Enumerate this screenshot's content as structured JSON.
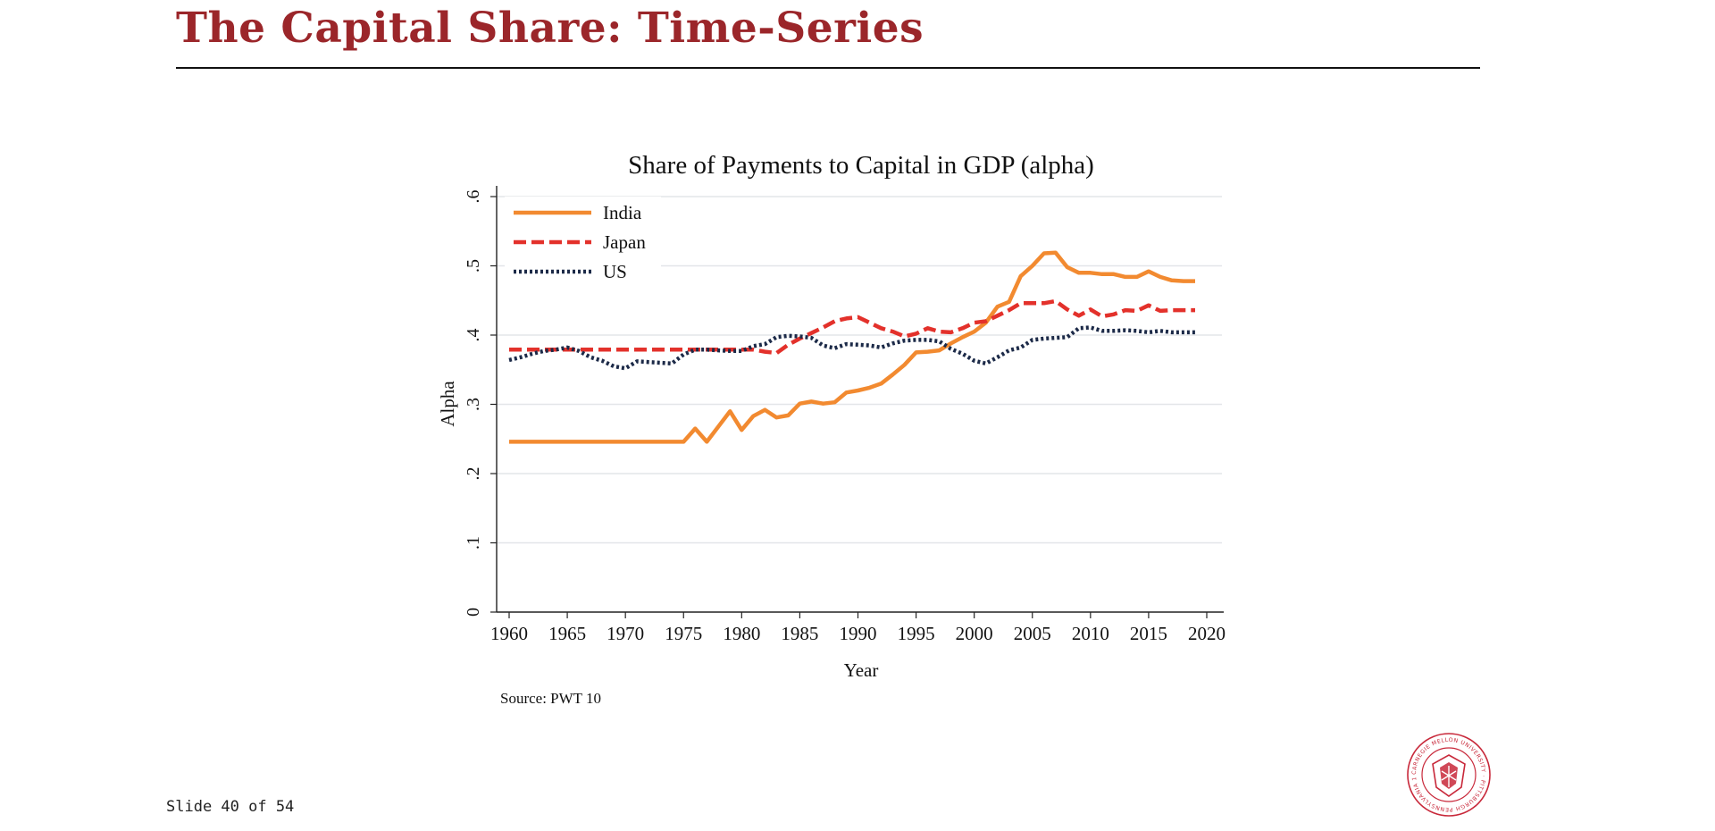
{
  "slide": {
    "title": "The Capital Share: Time-Series",
    "footer": "Slide 40 of 54",
    "accent_color": "#9b262a"
  },
  "seal": {
    "icon": "university-seal-icon",
    "text": "CARNEGIE MELLON UNIVERSITY · PITTSBURGH PENNSYLVANIA 1900",
    "color": "#c8283a"
  },
  "chart_data": {
    "type": "line",
    "title": "Share of Payments to Capital in GDP (alpha)",
    "xlabel": "Year",
    "ylabel": "Alpha",
    "note": "Source: PWT 10",
    "xlim": [
      1960,
      2020
    ],
    "ylim": [
      0,
      0.6
    ],
    "xticks": [
      1960,
      1965,
      1970,
      1975,
      1980,
      1985,
      1990,
      1995,
      2000,
      2005,
      2010,
      2015,
      2020
    ],
    "yticks": [
      0,
      0.1,
      0.2,
      0.3,
      0.4,
      0.5,
      0.6
    ],
    "ytick_labels": [
      "0",
      ".1",
      ".2",
      ".3",
      ".4",
      ".5",
      ".6"
    ],
    "grid": true,
    "legend_position": "top-left",
    "x": [
      1960,
      1961,
      1962,
      1963,
      1964,
      1965,
      1966,
      1967,
      1968,
      1969,
      1970,
      1971,
      1972,
      1973,
      1974,
      1975,
      1976,
      1977,
      1978,
      1979,
      1980,
      1981,
      1982,
      1983,
      1984,
      1985,
      1986,
      1987,
      1988,
      1989,
      1990,
      1991,
      1992,
      1993,
      1994,
      1995,
      1996,
      1997,
      1998,
      1999,
      2000,
      2001,
      2002,
      2003,
      2004,
      2005,
      2006,
      2007,
      2008,
      2009,
      2010,
      2011,
      2012,
      2013,
      2014,
      2015,
      2016,
      2017,
      2018,
      2019
    ],
    "series": [
      {
        "name": "India",
        "color": "#f28a30",
        "style": "solid",
        "values": [
          0.246,
          0.246,
          0.246,
          0.246,
          0.246,
          0.246,
          0.246,
          0.246,
          0.246,
          0.246,
          0.246,
          0.246,
          0.246,
          0.246,
          0.246,
          0.246,
          0.265,
          0.246,
          0.268,
          0.29,
          0.263,
          0.283,
          0.292,
          0.281,
          0.284,
          0.301,
          0.304,
          0.301,
          0.303,
          0.317,
          0.32,
          0.324,
          0.33,
          0.343,
          0.357,
          0.375,
          0.376,
          0.378,
          0.388,
          0.397,
          0.405,
          0.418,
          0.441,
          0.448,
          0.485,
          0.5,
          0.518,
          0.519,
          0.498,
          0.49,
          0.49,
          0.488,
          0.488,
          0.484,
          0.484,
          0.492,
          0.484,
          0.479,
          0.478,
          0.478
        ]
      },
      {
        "name": "Japan",
        "color": "#e3312b",
        "style": "dashed",
        "values": [
          0.379,
          0.379,
          0.379,
          0.379,
          0.379,
          0.379,
          0.379,
          0.379,
          0.379,
          0.379,
          0.379,
          0.379,
          0.379,
          0.379,
          0.379,
          0.379,
          0.379,
          0.379,
          0.379,
          0.379,
          0.379,
          0.379,
          0.376,
          0.374,
          0.386,
          0.395,
          0.403,
          0.411,
          0.42,
          0.424,
          0.426,
          0.418,
          0.41,
          0.405,
          0.398,
          0.402,
          0.41,
          0.405,
          0.404,
          0.41,
          0.418,
          0.42,
          0.428,
          0.436,
          0.446,
          0.446,
          0.446,
          0.449,
          0.437,
          0.428,
          0.437,
          0.427,
          0.43,
          0.436,
          0.435,
          0.443,
          0.435,
          0.436,
          0.436,
          0.436
        ]
      },
      {
        "name": "US",
        "color": "#1c2a48",
        "style": "dotted",
        "values": [
          0.364,
          0.368,
          0.373,
          0.377,
          0.379,
          0.382,
          0.377,
          0.368,
          0.363,
          0.355,
          0.352,
          0.362,
          0.361,
          0.36,
          0.359,
          0.372,
          0.379,
          0.379,
          0.378,
          0.377,
          0.377,
          0.384,
          0.387,
          0.397,
          0.399,
          0.398,
          0.396,
          0.385,
          0.381,
          0.387,
          0.386,
          0.385,
          0.382,
          0.388,
          0.392,
          0.393,
          0.393,
          0.391,
          0.38,
          0.373,
          0.363,
          0.359,
          0.368,
          0.378,
          0.382,
          0.393,
          0.395,
          0.396,
          0.397,
          0.41,
          0.411,
          0.406,
          0.406,
          0.407,
          0.406,
          0.404,
          0.406,
          0.404,
          0.404,
          0.404
        ]
      }
    ]
  }
}
